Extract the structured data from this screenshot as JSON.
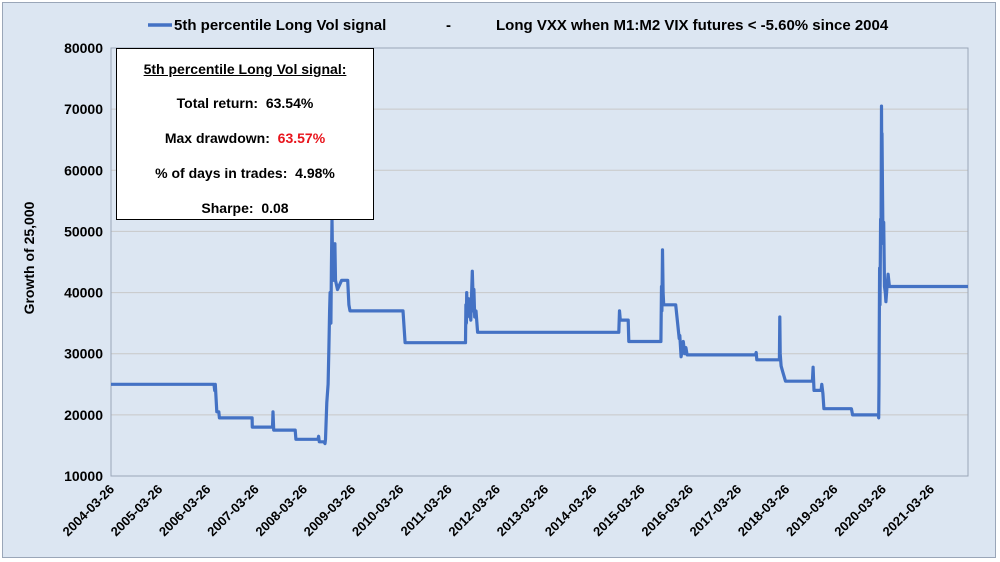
{
  "chart_data": {
    "type": "line",
    "legend": {
      "series_label": "5th percentile Long Vol signal",
      "separator": "-",
      "description": "Long VXX when M1:M2 VIX futures < -5.60% since 2004",
      "placement": "top"
    },
    "ylabel": "Growth of 25,000",
    "xlabel": "",
    "ylim": [
      10000,
      80000
    ],
    "yticks": [
      10000,
      20000,
      30000,
      40000,
      50000,
      60000,
      70000,
      80000
    ],
    "ytick_labels": [
      "10000",
      "20000",
      "30000",
      "40000",
      "50000",
      "60000",
      "70000",
      "80000"
    ],
    "xlim": [
      "2004-03-26",
      "2021-12-31"
    ],
    "xticks": [
      "2004-03-26",
      "2005-03-26",
      "2006-03-26",
      "2007-03-26",
      "2008-03-26",
      "2009-03-26",
      "2010-03-26",
      "2011-03-26",
      "2012-03-26",
      "2013-03-26",
      "2014-03-26",
      "2015-03-26",
      "2016-03-26",
      "2017-03-26",
      "2018-03-26",
      "2019-03-26",
      "2020-03-26",
      "2021-03-26"
    ],
    "grid": "horizontal",
    "series": [
      {
        "name": "5th percentile Long Vol signal",
        "color": "#4472c4",
        "points": [
          [
            "2004-03-26",
            25000
          ],
          [
            "2006-05-15",
            25000
          ],
          [
            "2006-05-20",
            24000
          ],
          [
            "2006-05-25",
            25000
          ],
          [
            "2006-06-05",
            20500
          ],
          [
            "2006-06-20",
            20500
          ],
          [
            "2006-06-25",
            19500
          ],
          [
            "2007-02-27",
            19500
          ],
          [
            "2007-03-01",
            18000
          ],
          [
            "2007-08-01",
            18000
          ],
          [
            "2007-08-05",
            20500
          ],
          [
            "2007-08-10",
            17500
          ],
          [
            "2008-01-20",
            17500
          ],
          [
            "2008-01-25",
            16000
          ],
          [
            "2008-07-10",
            16000
          ],
          [
            "2008-07-15",
            16500
          ],
          [
            "2008-07-20",
            15600
          ],
          [
            "2008-08-25",
            15600
          ],
          [
            "2008-09-01",
            15300
          ],
          [
            "2008-09-05",
            16000
          ],
          [
            "2008-09-15",
            22000
          ],
          [
            "2008-09-25",
            25000
          ],
          [
            "2008-10-01",
            31000
          ],
          [
            "2008-10-06",
            37000
          ],
          [
            "2008-10-10",
            40000
          ],
          [
            "2008-10-16",
            35000
          ],
          [
            "2008-10-20",
            44000
          ],
          [
            "2008-10-24",
            52000
          ],
          [
            "2008-10-28",
            46000
          ],
          [
            "2008-11-05",
            42000
          ],
          [
            "2008-11-15",
            48000
          ],
          [
            "2008-11-20",
            42000
          ],
          [
            "2008-12-05",
            40500
          ],
          [
            "2009-01-05",
            42000
          ],
          [
            "2009-02-20",
            42000
          ],
          [
            "2009-03-01",
            38000
          ],
          [
            "2009-03-10",
            37000
          ],
          [
            "2009-04-01",
            37000
          ],
          [
            "2010-04-15",
            37000
          ],
          [
            "2010-05-01",
            31800
          ],
          [
            "2011-08-01",
            31800
          ],
          [
            "2011-08-04",
            38000
          ],
          [
            "2011-08-08",
            35000
          ],
          [
            "2011-08-10",
            40000
          ],
          [
            "2011-08-15",
            36000
          ],
          [
            "2011-08-25",
            39000
          ],
          [
            "2011-09-10",
            35500
          ],
          [
            "2011-09-22",
            43500
          ],
          [
            "2011-10-01",
            37000
          ],
          [
            "2011-10-04",
            40500
          ],
          [
            "2011-10-10",
            36000
          ],
          [
            "2011-10-20",
            37000
          ],
          [
            "2011-11-01",
            33500
          ],
          [
            "2014-10-05",
            33500
          ],
          [
            "2014-10-10",
            37000
          ],
          [
            "2014-10-16",
            35500
          ],
          [
            "2014-12-15",
            35500
          ],
          [
            "2014-12-20",
            32000
          ],
          [
            "2015-08-20",
            32000
          ],
          [
            "2015-08-24",
            41000
          ],
          [
            "2015-08-27",
            37000
          ],
          [
            "2015-09-01",
            47000
          ],
          [
            "2015-09-05",
            40000
          ],
          [
            "2015-09-10",
            38000
          ],
          [
            "2015-12-10",
            38000
          ],
          [
            "2016-01-05",
            32500
          ],
          [
            "2016-01-10",
            33000
          ],
          [
            "2016-01-20",
            29500
          ],
          [
            "2016-02-05",
            32000
          ],
          [
            "2016-02-15",
            30000
          ],
          [
            "2016-02-25",
            31000
          ],
          [
            "2016-03-05",
            29800
          ],
          [
            "2017-08-05",
            29800
          ],
          [
            "2017-08-10",
            30200
          ],
          [
            "2017-08-15",
            29000
          ],
          [
            "2018-02-02",
            29000
          ],
          [
            "2018-02-05",
            36000
          ],
          [
            "2018-02-08",
            30000
          ],
          [
            "2018-02-15",
            28000
          ],
          [
            "2018-02-28",
            27000
          ],
          [
            "2018-03-20",
            25500
          ],
          [
            "2018-10-10",
            25500
          ],
          [
            "2018-10-15",
            27800
          ],
          [
            "2018-10-22",
            24000
          ],
          [
            "2018-12-15",
            24000
          ],
          [
            "2018-12-20",
            25000
          ],
          [
            "2018-12-28",
            23500
          ],
          [
            "2019-01-05",
            21000
          ],
          [
            "2019-08-01",
            21000
          ],
          [
            "2019-08-10",
            20000
          ],
          [
            "2020-02-20",
            20000
          ],
          [
            "2020-02-24",
            19500
          ],
          [
            "2020-02-26",
            25000
          ],
          [
            "2020-02-28",
            32000
          ],
          [
            "2020-03-02",
            44000
          ],
          [
            "2020-03-05",
            38000
          ],
          [
            "2020-03-09",
            52000
          ],
          [
            "2020-03-12",
            48000
          ],
          [
            "2020-03-16",
            70500
          ],
          [
            "2020-03-18",
            60000
          ],
          [
            "2020-03-20",
            66000
          ],
          [
            "2020-03-24",
            55000
          ],
          [
            "2020-03-27",
            50000
          ],
          [
            "2020-04-02",
            51500
          ],
          [
            "2020-04-08",
            41000
          ],
          [
            "2020-04-14",
            40000
          ],
          [
            "2020-04-18",
            38500
          ],
          [
            "2020-04-25",
            40500
          ],
          [
            "2020-05-05",
            43000
          ],
          [
            "2020-05-15",
            41000
          ],
          [
            "2020-06-01",
            41000
          ],
          [
            "2021-12-31",
            41000
          ]
        ]
      }
    ]
  },
  "stats_box": {
    "title": "5th percentile Long Vol signal:",
    "total_return_label": "Total return:",
    "total_return_value": "63.54%",
    "max_drawdown_label": "Max drawdown:",
    "max_drawdown_value": "63.57%",
    "days_in_trades_label": "% of days in trades:",
    "days_in_trades_value": "4.98%",
    "sharpe_label": "Sharpe:",
    "sharpe_value": "0.08",
    "highlight_color": "#e8141c"
  }
}
